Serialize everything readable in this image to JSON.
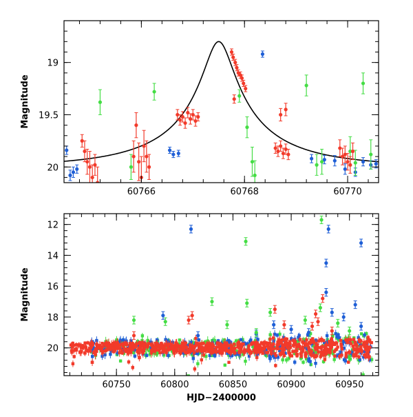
{
  "colors": {
    "blue": "#1f5fd6",
    "green": "#44dd44",
    "red": "#f23a2a",
    "model": "#000000"
  },
  "chart_data": [
    {
      "type": "scatter",
      "title": "",
      "xlabel": "",
      "ylabel": "Magnitude",
      "xlim": [
        60764.5,
        60770.6
      ],
      "ylim": [
        20.15,
        18.6
      ],
      "y_inverted": true,
      "xticks": [
        60766,
        60768,
        60770
      ],
      "yticks": [
        19,
        19.5,
        20
      ],
      "ytick_labels": [
        "19",
        "19.5",
        "20"
      ],
      "xtick_labels": [
        "60766",
        "60768",
        "60770"
      ],
      "model_curve": {
        "peak_x": 60767.5,
        "peak_mag": 18.8,
        "base_mag": 20.0,
        "u0": 0.12,
        "tE": 2.3
      },
      "series": [
        {
          "color": "blue",
          "points": [
            [
              60764.55,
              19.84,
              0.04
            ],
            [
              60764.62,
              20.08,
              0.05
            ],
            [
              60764.68,
              20.05,
              0.05
            ],
            [
              60764.75,
              20.02,
              0.04
            ],
            [
              60766.55,
              19.84,
              0.03
            ],
            [
              60766.62,
              19.88,
              0.03
            ],
            [
              60766.72,
              19.87,
              0.03
            ],
            [
              60768.35,
              18.92,
              0.03
            ],
            [
              60769.3,
              19.92,
              0.04
            ],
            [
              60769.55,
              19.93,
              0.04
            ],
            [
              60769.75,
              19.94,
              0.05
            ],
            [
              60769.95,
              20.02,
              0.05
            ],
            [
              60770.15,
              20.05,
              0.04
            ],
            [
              60770.3,
              19.95,
              0.04
            ],
            [
              60770.45,
              19.98,
              0.04
            ],
            [
              60770.55,
              19.97,
              0.04
            ]
          ]
        },
        {
          "color": "green",
          "points": [
            [
              60765.2,
              19.38,
              0.12
            ],
            [
              60765.8,
              20.0,
              0.12
            ],
            [
              60766.25,
              19.28,
              0.08
            ],
            [
              60767.9,
              19.32,
              0.06
            ],
            [
              60768.05,
              19.62,
              0.1
            ],
            [
              60768.15,
              19.95,
              0.14
            ],
            [
              60768.2,
              20.08,
              0.14
            ],
            [
              60769.2,
              19.22,
              0.1
            ],
            [
              60769.4,
              19.98,
              0.1
            ],
            [
              60769.5,
              19.95,
              0.12
            ],
            [
              60770.05,
              19.85,
              0.14
            ],
            [
              60770.15,
              19.96,
              0.12
            ],
            [
              60770.3,
              19.2,
              0.1
            ],
            [
              60770.45,
              19.88,
              0.14
            ]
          ]
        },
        {
          "color": "red",
          "points": [
            [
              60764.85,
              19.75,
              0.06
            ],
            [
              60764.9,
              19.85,
              0.1
            ],
            [
              60764.95,
              19.95,
              0.12
            ],
            [
              60765.0,
              20.0,
              0.15
            ],
            [
              60765.05,
              20.1,
              0.12
            ],
            [
              60765.1,
              19.98,
              0.1
            ],
            [
              60765.15,
              20.15,
              0.15
            ],
            [
              60765.85,
              19.9,
              0.15
            ],
            [
              60765.9,
              19.6,
              0.12
            ],
            [
              60765.95,
              19.95,
              0.18
            ],
            [
              60766.0,
              20.1,
              0.2
            ],
            [
              60766.05,
              19.8,
              0.15
            ],
            [
              60766.1,
              19.9,
              0.15
            ],
            [
              60766.15,
              20.0,
              0.12
            ],
            [
              60766.7,
              19.5,
              0.05
            ],
            [
              60766.75,
              19.55,
              0.05
            ],
            [
              60766.8,
              19.52,
              0.05
            ],
            [
              60766.85,
              19.58,
              0.05
            ],
            [
              60766.9,
              19.48,
              0.05
            ],
            [
              60766.95,
              19.54,
              0.05
            ],
            [
              60767.0,
              19.5,
              0.05
            ],
            [
              60767.05,
              19.56,
              0.05
            ],
            [
              60767.1,
              19.52,
              0.04
            ],
            [
              60767.75,
              18.9,
              0.03
            ],
            [
              60767.78,
              18.95,
              0.03
            ],
            [
              60767.82,
              19.0,
              0.03
            ],
            [
              60767.85,
              19.05,
              0.03
            ],
            [
              60767.88,
              19.1,
              0.03
            ],
            [
              60767.92,
              19.12,
              0.03
            ],
            [
              60767.95,
              19.15,
              0.03
            ],
            [
              60767.98,
              19.2,
              0.03
            ],
            [
              60768.02,
              19.25,
              0.03
            ],
            [
              60767.8,
              19.35,
              0.04
            ],
            [
              60768.6,
              19.82,
              0.05
            ],
            [
              60768.65,
              19.85,
              0.05
            ],
            [
              60768.7,
              19.8,
              0.05
            ],
            [
              60768.75,
              19.87,
              0.05
            ],
            [
              60768.8,
              19.83,
              0.05
            ],
            [
              60768.85,
              19.88,
              0.05
            ],
            [
              60768.7,
              19.5,
              0.06
            ],
            [
              60768.8,
              19.45,
              0.06
            ],
            [
              60769.85,
              19.82,
              0.08
            ],
            [
              60769.9,
              19.9,
              0.08
            ],
            [
              60769.95,
              19.88,
              0.08
            ],
            [
              60770.0,
              19.95,
              0.08
            ],
            [
              60770.05,
              19.98,
              0.08
            ],
            [
              60770.1,
              19.85,
              0.08
            ]
          ]
        }
      ]
    },
    {
      "type": "scatter",
      "title": "",
      "xlabel": "HJD−2400000",
      "ylabel": "Magnitude",
      "xlim": [
        60705,
        60975
      ],
      "ylim": [
        21.8,
        11.3
      ],
      "y_inverted": true,
      "xticks": [
        60750,
        60800,
        60850,
        60900,
        60950
      ],
      "yticks": [
        12,
        14,
        16,
        18,
        20
      ],
      "xtick_labels": [
        "60750",
        "60800",
        "60850",
        "60900",
        "60950"
      ],
      "ytick_labels": [
        "12",
        "14",
        "16",
        "18",
        "20"
      ],
      "series": [
        {
          "color": "blue",
          "points": [
            [
              60814,
              12.3
            ],
            [
              60932,
              12.3
            ],
            [
              60930,
              14.5
            ],
            [
              60960,
              13.2
            ],
            [
              60930,
              16.4
            ],
            [
              60955,
              17.2
            ],
            [
              60960,
              18.6
            ],
            [
              60935,
              17.7
            ],
            [
              60945,
              18.0
            ],
            [
              60790,
              17.9
            ],
            [
              60885,
              18.5
            ],
            [
              60900,
              18.8
            ],
            [
              60820,
              19.2
            ],
            [
              60870,
              19.1
            ],
            [
              60915,
              19.0
            ]
          ]
        },
        {
          "color": "green",
          "points": [
            [
              60926,
              11.7
            ],
            [
              60861,
              13.1
            ],
            [
              60832,
              17.0
            ],
            [
              60862,
              17.1
            ],
            [
              60765,
              18.2
            ],
            [
              60792,
              18.3
            ],
            [
              60845,
              18.5
            ],
            [
              60882,
              17.7
            ],
            [
              60912,
              18.2
            ],
            [
              60925,
              17.4
            ],
            [
              60940,
              18.4
            ],
            [
              60950,
              18.9
            ],
            [
              60870,
              19.0
            ]
          ]
        },
        {
          "color": "red",
          "points": [
            [
              60927,
              16.8
            ],
            [
              60921,
              17.8
            ],
            [
              60923,
              18.3
            ],
            [
              60886,
              17.5
            ],
            [
              60815,
              17.9
            ],
            [
              60812,
              18.2
            ],
            [
              60894,
              18.5
            ],
            [
              60918,
              18.6
            ],
            [
              60935,
              18.9
            ],
            [
              60765,
              19.2
            ]
          ]
        }
      ]
    }
  ]
}
